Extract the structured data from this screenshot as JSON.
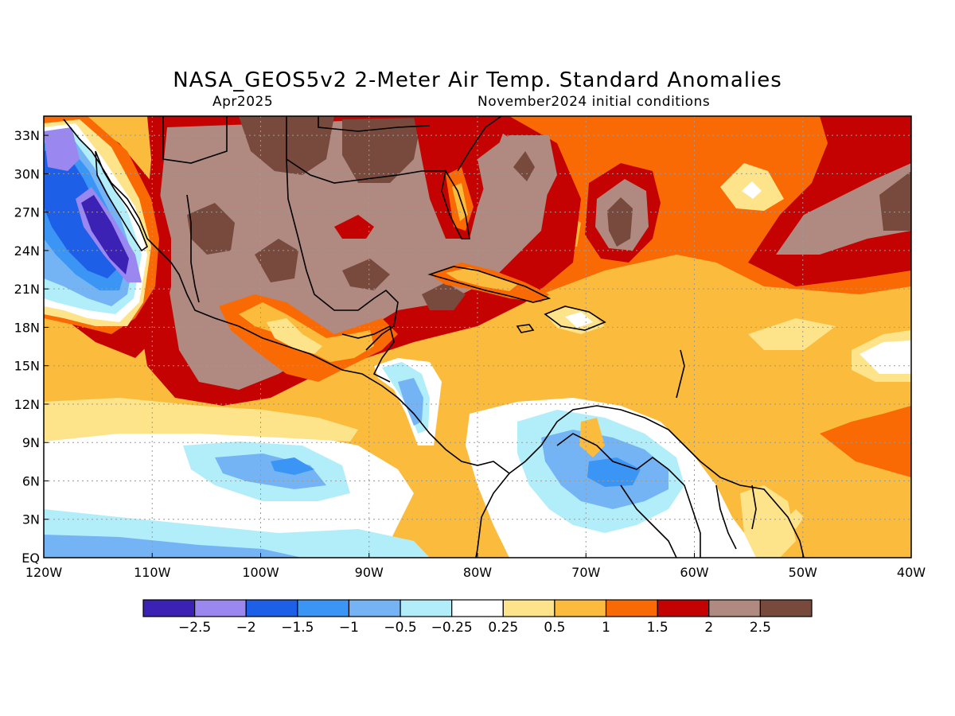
{
  "header": {
    "title": "NASA_GEOS5v2 2-Meter Air Temp. Standard Anomalies",
    "valid_month": "Apr2025",
    "init_label": "November2024 initial conditions"
  },
  "map": {
    "lat_labels": [
      "33N",
      "30N",
      "27N",
      "24N",
      "21N",
      "18N",
      "15N",
      "12N",
      "9N",
      "6N",
      "3N",
      "EQ"
    ],
    "lon_labels": [
      "120W",
      "110W",
      "100W",
      "90W",
      "80W",
      "70W",
      "60W",
      "50W",
      "40W"
    ],
    "grid_lines": true
  },
  "colorbar": {
    "colors": [
      "#3b22b4",
      "#9b87f0",
      "#1d5fe6",
      "#3b95f5",
      "#74b4f5",
      "#b2eefa",
      "#ffffff",
      "#fde48a",
      "#fbbb3c",
      "#fa6a04",
      "#c40202",
      "#b08a80",
      "#784a3d"
    ],
    "labels": [
      "-2.5",
      "-2",
      "-1.5",
      "-1",
      "-0.5",
      "-0.25",
      "0.25",
      "0.5",
      "1",
      "1.5",
      "2",
      "2.5"
    ]
  }
}
